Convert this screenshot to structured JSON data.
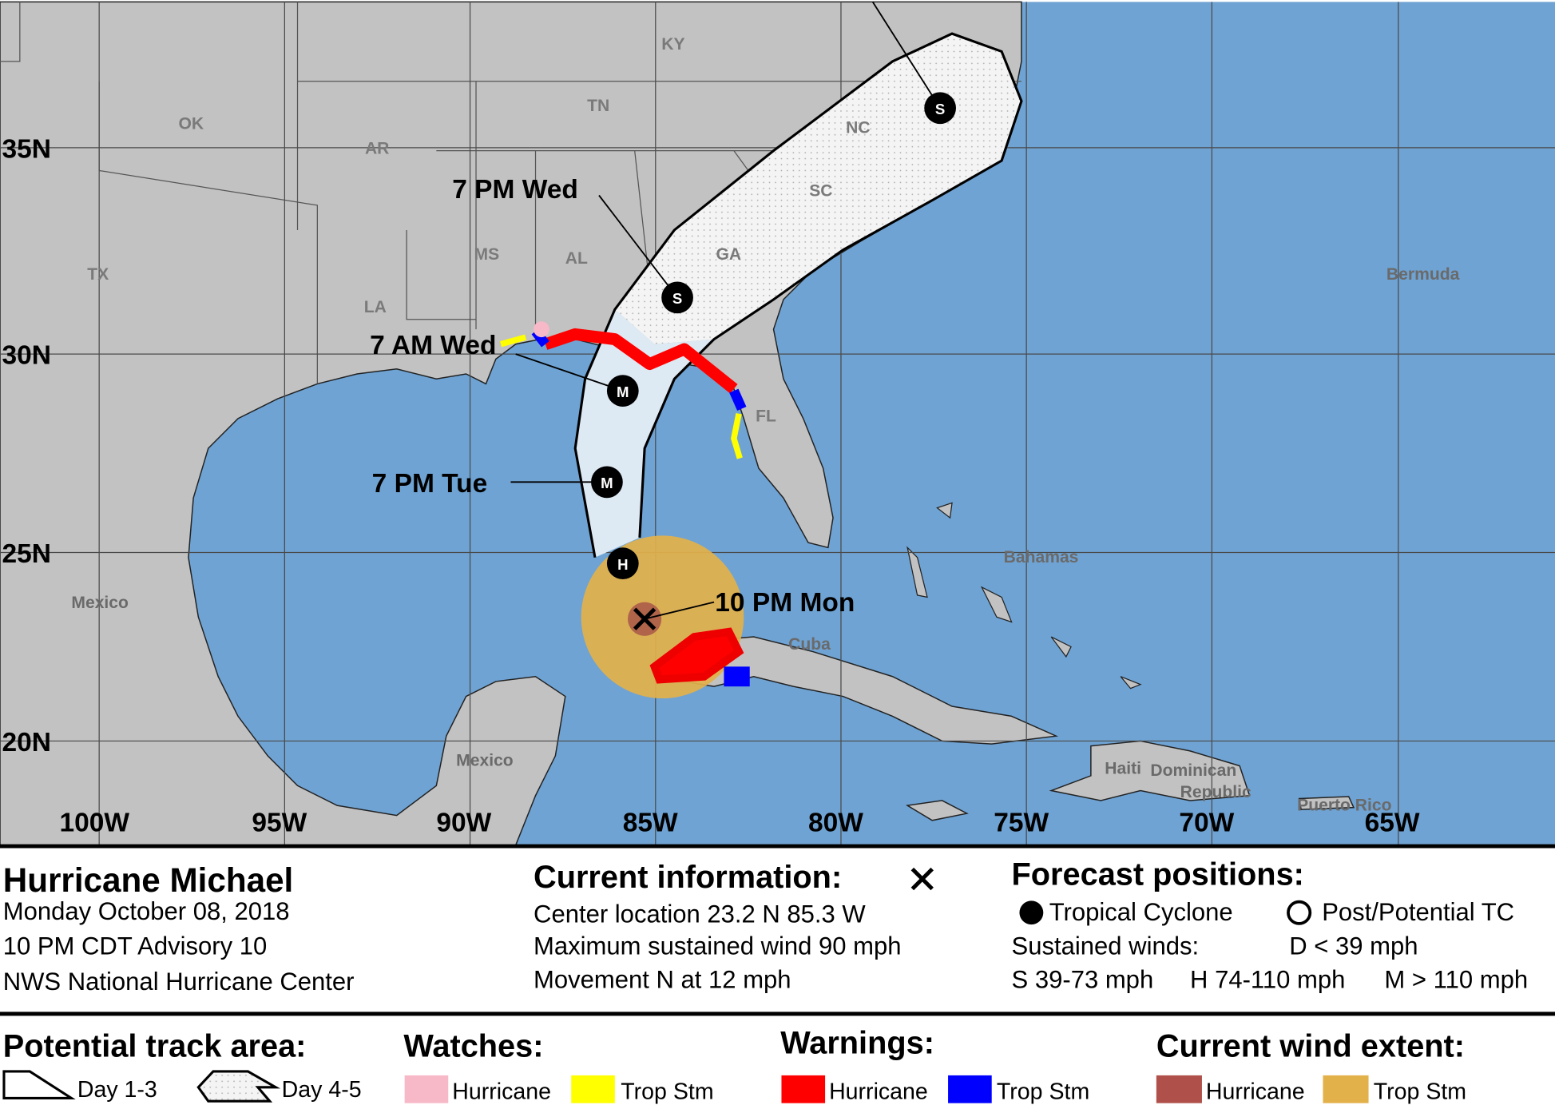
{
  "map": {
    "place_labels": [
      "KY",
      "TN",
      "OK",
      "AR",
      "NC",
      "SC",
      "GA",
      "MS",
      "AL",
      "TX",
      "LA",
      "FL",
      "Bermuda",
      "Bahamas",
      "Mexico",
      "Cuba",
      "Mexico",
      "Haiti",
      "Dominican",
      "Republic",
      "Puerto Rico"
    ],
    "latitude_labels": [
      "35N",
      "30N",
      "25N",
      "20N"
    ],
    "longitude_labels": [
      "100W",
      "95W",
      "90W",
      "85W",
      "80W",
      "75W",
      "70W",
      "65W"
    ],
    "forecast_labels": [
      "7 PM Wed",
      "7 AM Wed",
      "7 PM Tue",
      "10 PM Mon"
    ],
    "forecast_points": [
      "S",
      "S",
      "M",
      "M",
      "H"
    ]
  },
  "info": {
    "title": "Hurricane Michael",
    "date": "Monday October 08, 2018",
    "advisory": "10 PM CDT Advisory 10",
    "center": "NWS National Hurricane Center"
  },
  "current": {
    "heading": "Current information:",
    "lines": [
      "Center location 23.2 N 85.3 W",
      "Maximum sustained wind 90 mph",
      "Movement N at 12 mph"
    ]
  },
  "forecast": {
    "heading": "Forecast positions:",
    "tropical": "Tropical Cyclone",
    "post": "Post/Potential TC",
    "sustained": "Sustained winds:",
    "d": "D < 39 mph",
    "s": "S 39-73 mph",
    "h": "H 74-110 mph",
    "m": "M > 110 mph"
  },
  "legend": {
    "track": {
      "heading": "Potential track area:",
      "day13": "Day 1-3",
      "day45": "Day 4-5"
    },
    "watches": {
      "heading": "Watches:",
      "hurricane": "Hurricane",
      "tropical_storm": "Trop Stm"
    },
    "warnings": {
      "heading": "Warnings:",
      "hurricane": "Hurricane",
      "tropical_storm": "Trop Stm"
    },
    "wind": {
      "heading": "Current wind extent:",
      "hurricane": "Hurricane",
      "tropical_storm": "Trop Stm"
    }
  }
}
